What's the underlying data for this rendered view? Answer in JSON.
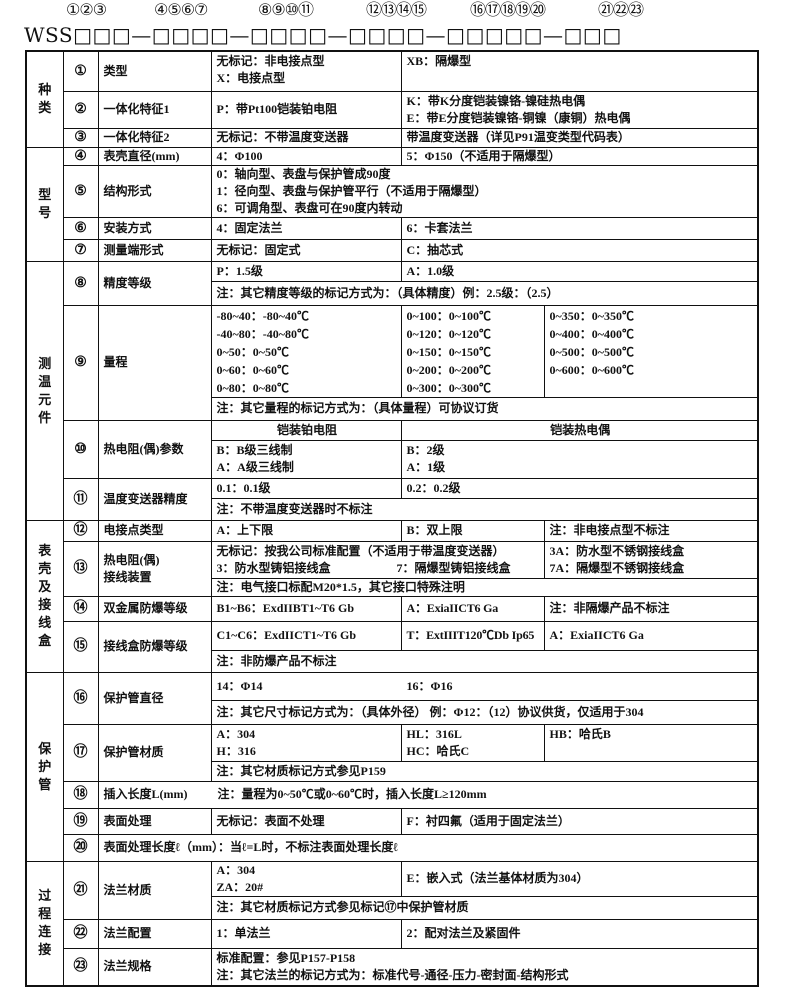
{
  "header": {
    "numbers": [
      "①②③",
      "④⑤⑥⑦",
      "⑧⑨⑩⑪",
      "⑫⑬⑭⑮",
      "⑯⑰⑱⑲⑳",
      "㉑㉒㉓"
    ],
    "code": "WSS□□□—□□□□—□□□□—□□□□—□□□□□—□□□"
  },
  "groups": [
    "种类",
    "型号",
    "测温元件",
    "表壳及接线盒",
    "保护管",
    "过程连接"
  ],
  "rows": {
    "r1": {
      "num": "①",
      "name": "类型",
      "a": [
        "无标记：非电接点型",
        "X：电接点型"
      ],
      "b": "XB：隔爆型"
    },
    "r2": {
      "num": "②",
      "name": "一体化特征1",
      "a": "P：带Pt100铠装铂电阻",
      "b": [
        "K：带K分度铠装镍铬-镍硅热电偶",
        "E：带E分度铠装镍铬-铜镍（康铜）热电偶"
      ]
    },
    "r3": {
      "num": "③",
      "name": "一体化特征2",
      "a": "无标记：不带温度变送器",
      "b": "带温度变送器（详见P91温变类型代码表）"
    },
    "r4": {
      "num": "④",
      "name": "表壳直径(mm)",
      "a": "4：Φ100",
      "b": "5：Φ150（不适用于隔爆型）"
    },
    "r5": {
      "num": "⑤",
      "name": "结构形式",
      "lines": [
        "0：轴向型、表盘与保护管成90度",
        "1：径向型、表盘与保护管平行（不适用于隔爆型）",
        "6：可调角型、表盘可在90度内转动"
      ]
    },
    "r6": {
      "num": "⑥",
      "name": "安装方式",
      "a": "4：固定法兰",
      "b": "6：卡套法兰"
    },
    "r7": {
      "num": "⑦",
      "name": "测量端形式",
      "a": "无标记：固定式",
      "b": "C：抽芯式"
    },
    "r8": {
      "num": "⑧",
      "name": "精度等级",
      "a": "P：1.5级",
      "b": "A：1.0级",
      "note": "注：其它精度等级的标记方式为：（具体精度）例：2.5级：（2.5）"
    },
    "r9": {
      "num": "⑨",
      "name": "量程",
      "col1": [
        "-80~40：-80~40℃",
        "-40~80：-40~80℃",
        "0~50：0~50℃",
        "0~60：0~60℃",
        "0~80：0~80℃"
      ],
      "col2": [
        "0~100：0~100℃",
        "0~120：0~120℃",
        "0~150：0~150℃",
        "0~200：0~200℃",
        "0~300：0~300℃"
      ],
      "col3": [
        "0~350：0~350℃",
        "0~400：0~400℃",
        "0~500：0~500℃",
        "0~600：0~600℃"
      ],
      "note": "注：其它量程的标记方式为：（具体量程）可协议订货"
    },
    "r10": {
      "num": "⑩",
      "name": "热电阻(偶)参数",
      "head_a": "铠装铂电阻",
      "head_b": "铠装热电偶",
      "a": [
        "B：B级三线制",
        "A：A级三线制"
      ],
      "b": [
        "B：2级",
        "A：1级"
      ]
    },
    "r11": {
      "num": "⑪",
      "name": "温度变送器精度",
      "a": "0.1：0.1级",
      "b": "0.2：0.2级",
      "note": "注：不带温度变送器时不标注"
    },
    "r12": {
      "num": "⑫",
      "name": "电接点类型",
      "a": "A：上下限",
      "b": "B：双上限",
      "c": "注：非电接点型不标注"
    },
    "r13": {
      "num": "⑬",
      "name": [
        "热电阻(偶)",
        "接线装置"
      ],
      "a1": "无标记：按我公司标准配置（不适用于带温度变送器）",
      "a2": "3：防水型铸铝接线盒",
      "a3": "7：隔爆型铸铝接线盒",
      "c": [
        "3A：防水型不锈钢接线盒",
        "7A：隔爆型不锈钢接线盒"
      ],
      "note": "注：电气接口标配M20*1.5，其它接口特殊注明"
    },
    "r14": {
      "num": "⑭",
      "name": "双金属防爆等级",
      "a": "B1~B6：ExdIIBT1~T6 Gb",
      "b": "A：ExiaIICT6  Ga",
      "c": "注：非隔爆产品不标注"
    },
    "r15": {
      "num": "⑮",
      "name": "接线盒防爆等级",
      "a": "C1~C6：ExdIICT1~T6 Gb",
      "b": "T：ExtIIIT120℃Db Ip65",
      "c": "A：ExiaIICT6  Ga",
      "note": "注：非防爆产品不标注"
    },
    "r16": {
      "num": "⑯",
      "name": "保护管直径",
      "a": "14：Φ14",
      "b": "16：Φ16",
      "note": "注：其它尺寸标记方式为：（具体外径） 例：Φ12：（12）协议供货，仅适用于304"
    },
    "r17": {
      "num": "⑰",
      "name": "保护管材质",
      "a": [
        "A：304",
        "H：316"
      ],
      "b": [
        "HL：316L",
        "HC：哈氏C"
      ],
      "c": "HB：哈氏B",
      "note": "注：其它材质标记方式参见P159"
    },
    "r18": {
      "num": "⑱",
      "name": "插入长度L(mm)",
      "note": "注：量程为0~50℃或0~60℃时，插入长度L≥120mm"
    },
    "r19": {
      "num": "⑲",
      "name": "表面处理",
      "a": "无标记：表面不处理",
      "b": "F：衬四氟（适用于固定法兰）"
    },
    "r20": {
      "num": "⑳",
      "text": "表面处理长度ℓ（mm）：当ℓ=L时，不标注表面处理长度ℓ"
    },
    "r21": {
      "num": "㉑",
      "name": "法兰材质",
      "a": [
        "A：304",
        "ZA：20#"
      ],
      "b": "E：嵌入式（法兰基体材质为304）",
      "note": "注：其它材质标记方式参见标记⑰中保护管材质"
    },
    "r22": {
      "num": "㉒",
      "name": "法兰配置",
      "a": "1：单法兰",
      "b": "2：配对法兰及紧固件"
    },
    "r23": {
      "num": "㉓",
      "name": "法兰规格",
      "lines": [
        "标准配置：参见P157-P158",
        "注：其它法兰的标记方式为：标准代号-通径-压力-密封面-结构形式"
      ]
    }
  }
}
